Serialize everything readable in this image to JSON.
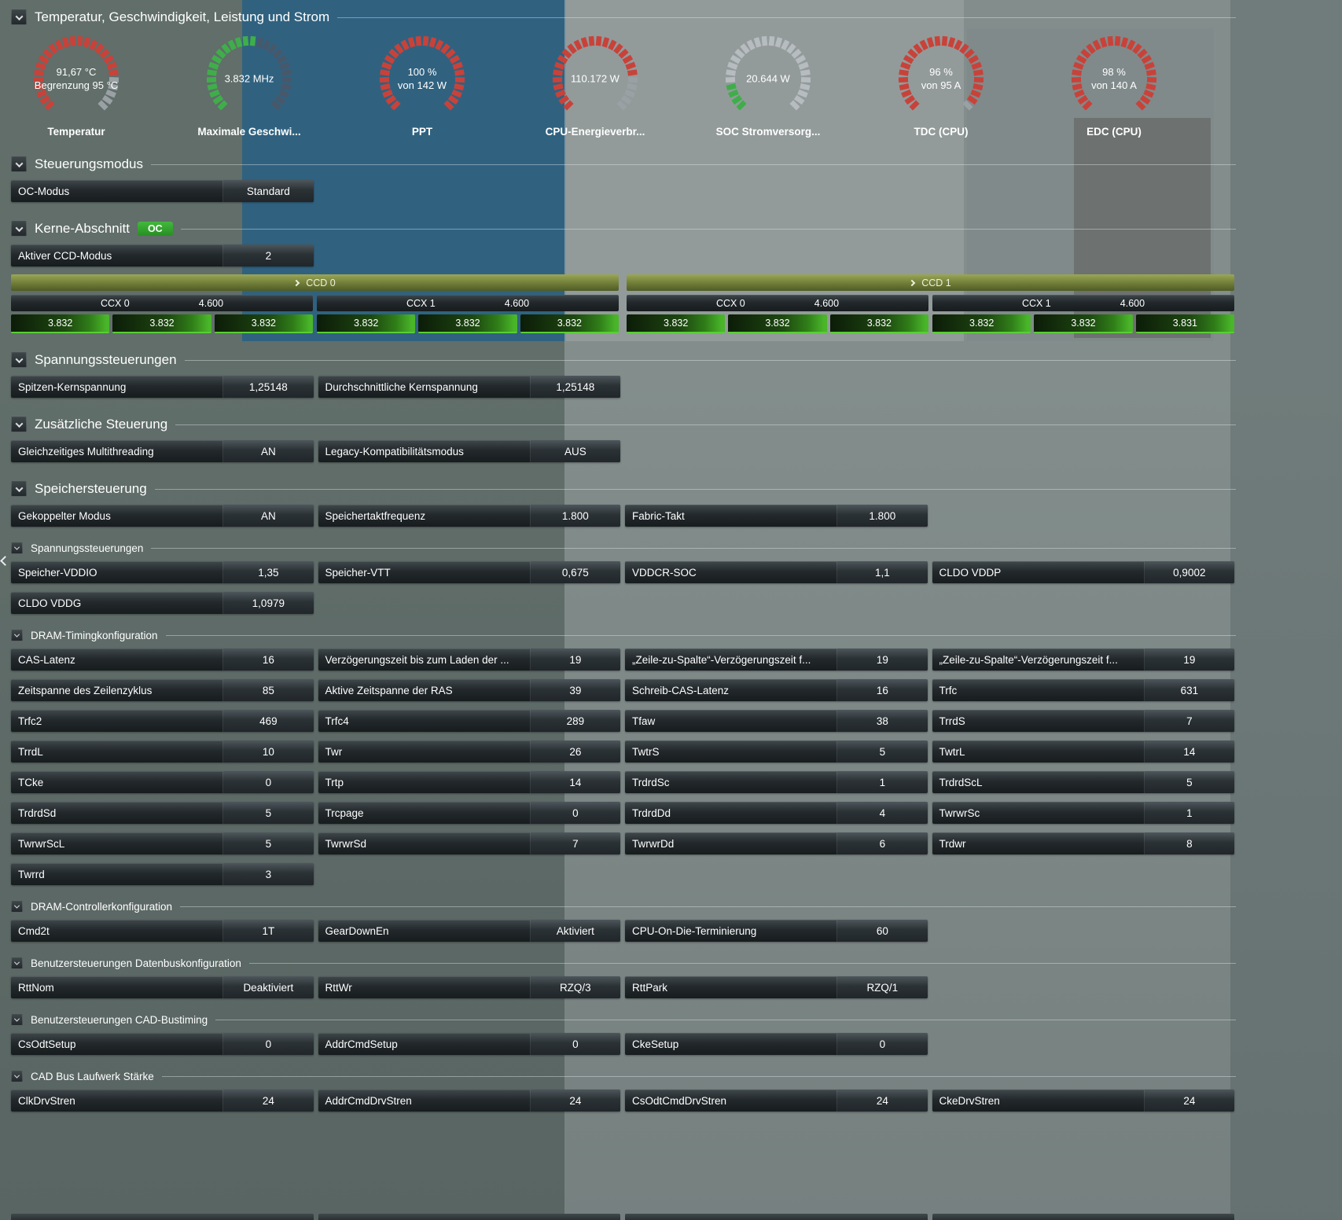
{
  "header": {
    "title": "Temperatur, Geschwindigkeit, Leistung und Strom"
  },
  "gauges": [
    {
      "label": "Temperatur",
      "lines": [
        "91,67 °C",
        "Begrenzung 95 °C"
      ],
      "fraction": 0.8,
      "color": "#c8423a",
      "rest_color": "#9aa1a5"
    },
    {
      "label": "Maximale Geschwi...",
      "lines": [
        "3.832  MHz"
      ],
      "fraction": 0.52,
      "color": "#3fae4a",
      "rest_color": "#47586b"
    },
    {
      "label": "PPT",
      "lines": [
        "100 %",
        "von 142 W"
      ],
      "fraction": 1.0,
      "color": "#c8423a",
      "rest_color": "#9aa1a5"
    },
    {
      "label": "CPU-Energieverbr...",
      "lines": [
        "110.172 W"
      ],
      "fraction": 0.8,
      "color": "#c8423a",
      "rest_color": "#9aa1a5"
    },
    {
      "label": "SOC Stromversorg...",
      "lines": [
        "20.644 W"
      ],
      "fraction": 0.15,
      "color": "#3fae4a",
      "rest_color": "#b6bcbf"
    },
    {
      "label": "TDC (CPU)",
      "lines": [
        "96 %",
        "von 95 A"
      ],
      "fraction": 0.97,
      "color": "#c8423a",
      "rest_color": "#9aa1a5"
    },
    {
      "label": "EDC (CPU)",
      "lines": [
        "98 %",
        "von 140 A"
      ],
      "fraction": 1.0,
      "color": "#c8423a",
      "rest_color": "#9aa1a5"
    }
  ],
  "sections": [
    {
      "title": "Steuerungsmodus",
      "level": "main",
      "rows": [
        {
          "label": "OC-Modus",
          "value": "Standard"
        }
      ]
    },
    {
      "title": "Kerne-Abschnitt",
      "level": "main",
      "badge": "OC",
      "rows": [
        {
          "label": "Aktiver CCD-Modus",
          "value": "2"
        }
      ],
      "cores": {
        "ccds": [
          {
            "name": "CCD 0",
            "ccxs": [
              {
                "name": "CCX 0",
                "limit": "4.600",
                "cores": [
                  "3.832",
                  "3.832",
                  "3.832"
                ]
              },
              {
                "name": "CCX 1",
                "limit": "4.600",
                "cores": [
                  "3.832",
                  "3.832",
                  "3.832"
                ]
              }
            ]
          },
          {
            "name": "CCD 1",
            "ccxs": [
              {
                "name": "CCX 0",
                "limit": "4.600",
                "cores": [
                  "3.832",
                  "3.832",
                  "3.832"
                ]
              },
              {
                "name": "CCX 1",
                "limit": "4.600",
                "cores": [
                  "3.832",
                  "3.832",
                  "3.831"
                ]
              }
            ]
          }
        ]
      }
    },
    {
      "title": "Spannungssteuerungen",
      "level": "main",
      "rows": [
        {
          "label": "Spitzen-Kernspannung",
          "value": "1,25148"
        },
        {
          "label": "Durchschnittliche Kernspannung",
          "value": "1,25148"
        }
      ]
    },
    {
      "title": "Zusätzliche Steuerung",
      "level": "main",
      "rows": [
        {
          "label": "Gleichzeitiges Multithreading",
          "value": "AN"
        },
        {
          "label": "Legacy-Kompatibilitätsmodus",
          "value": "AUS"
        }
      ]
    },
    {
      "title": "Speichersteuerung",
      "level": "main",
      "rows": [
        {
          "label": "Gekoppelter Modus",
          "value": "AN"
        },
        {
          "label": "Speichertaktfrequenz",
          "value": "1.800"
        },
        {
          "label": "Fabric-Takt",
          "value": "1.800"
        }
      ]
    },
    {
      "title": "Spannungssteuerungen",
      "level": "sub",
      "rows": [
        {
          "label": "Speicher-VDDIO",
          "value": "1,35"
        },
        {
          "label": "Speicher-VTT",
          "value": "0,675"
        },
        {
          "label": "VDDCR-SOC",
          "value": "1,1"
        },
        {
          "label": "CLDO VDDP",
          "value": "0,9002"
        },
        {
          "label": "CLDO VDDG",
          "value": "1,0979"
        }
      ]
    },
    {
      "title": "DRAM-Timingkonfiguration",
      "level": "sub",
      "rows": [
        {
          "label": "CAS-Latenz",
          "value": "16"
        },
        {
          "label": "Verzögerungszeit bis zum Laden der ...",
          "value": "19"
        },
        {
          "label": "„Zeile-zu-Spalte“-Verzögerungszeit f...",
          "value": "19"
        },
        {
          "label": "„Zeile-zu-Spalte“-Verzögerungszeit f...",
          "value": "19"
        },
        {
          "label": "Zeitspanne des Zeilenzyklus",
          "value": "85"
        },
        {
          "label": "Aktive Zeitspanne der RAS",
          "value": "39"
        },
        {
          "label": "Schreib-CAS-Latenz",
          "value": "16"
        },
        {
          "label": "Trfc",
          "value": "631"
        },
        {
          "label": "Trfc2",
          "value": "469"
        },
        {
          "label": "Trfc4",
          "value": "289"
        },
        {
          "label": "Tfaw",
          "value": "38"
        },
        {
          "label": "TrrdS",
          "value": "7"
        },
        {
          "label": "TrrdL",
          "value": "10"
        },
        {
          "label": "Twr",
          "value": "26"
        },
        {
          "label": "TwtrS",
          "value": "5"
        },
        {
          "label": "TwtrL",
          "value": "14"
        },
        {
          "label": "TCke",
          "value": "0"
        },
        {
          "label": "Trtp",
          "value": "14"
        },
        {
          "label": "TrdrdSc",
          "value": "1"
        },
        {
          "label": "TrdrdScL",
          "value": "5"
        },
        {
          "label": "TrdrdSd",
          "value": "5"
        },
        {
          "label": "Trcpage",
          "value": "0"
        },
        {
          "label": "TrdrdDd",
          "value": "4"
        },
        {
          "label": "TwrwrSc",
          "value": "1"
        },
        {
          "label": "TwrwrScL",
          "value": "5"
        },
        {
          "label": "TwrwrSd",
          "value": "7"
        },
        {
          "label": "TwrwrDd",
          "value": "6"
        },
        {
          "label": "Trdwr",
          "value": "8"
        },
        {
          "label": "Twrrd",
          "value": "3"
        }
      ]
    },
    {
      "title": "DRAM-Controllerkonfiguration",
      "level": "sub",
      "rows": [
        {
          "label": "Cmd2t",
          "value": "1T"
        },
        {
          "label": "GearDownEn",
          "value": "Aktiviert"
        },
        {
          "label": "CPU-On-Die-Terminierung",
          "value": "60"
        }
      ]
    },
    {
      "title": "Benutzersteuerungen Datenbuskonfiguration",
      "level": "sub",
      "rows": [
        {
          "label": "RttNom",
          "value": "Deaktiviert"
        },
        {
          "label": "RttWr",
          "value": "RZQ/3"
        },
        {
          "label": "RttPark",
          "value": "RZQ/1"
        }
      ]
    },
    {
      "title": "Benutzersteuerungen CAD-Bustiming",
      "level": "sub",
      "rows": [
        {
          "label": "CsOdtSetup",
          "value": "0"
        },
        {
          "label": "AddrCmdSetup",
          "value": "0"
        },
        {
          "label": "CkeSetup",
          "value": "0"
        }
      ]
    },
    {
      "title": "CAD Bus Laufwerk Stärke",
      "level": "sub",
      "rows": [
        {
          "label": "ClkDrvStren",
          "value": "24"
        },
        {
          "label": "AddrCmdDrvStren",
          "value": "24"
        },
        {
          "label": "CsOdtCmdDrvStren",
          "value": "24"
        },
        {
          "label": "CkeDrvStren",
          "value": "24"
        }
      ]
    }
  ]
}
